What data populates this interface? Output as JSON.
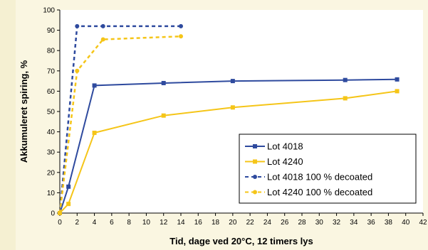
{
  "chart_data": {
    "type": "line",
    "xlabel": "Tid, dage ved 20°C, 12 timers lys",
    "ylabel": "Akkumuleret spiring, %",
    "xlim": [
      0,
      42
    ],
    "ylim": [
      0,
      100
    ],
    "xticks": [
      0,
      2,
      4,
      6,
      8,
      10,
      12,
      14,
      16,
      18,
      20,
      22,
      24,
      26,
      28,
      30,
      32,
      34,
      36,
      38,
      40,
      42
    ],
    "yticks": [
      0,
      10,
      20,
      30,
      40,
      50,
      60,
      70,
      80,
      90,
      100
    ],
    "grid": false,
    "legend_position": "bottom-right",
    "series": [
      {
        "name": "Lot 4018",
        "color": "#2e4a9e",
        "style": "solid",
        "marker": "square",
        "points": [
          [
            0,
            0
          ],
          [
            1,
            13
          ],
          [
            4,
            62.8
          ],
          [
            12,
            64
          ],
          [
            20,
            65
          ],
          [
            33,
            65.5
          ],
          [
            39,
            65.8
          ]
        ]
      },
      {
        "name": "Lot 4240",
        "color": "#f5c518",
        "style": "solid",
        "marker": "square",
        "points": [
          [
            0,
            0
          ],
          [
            1,
            4.5
          ],
          [
            4,
            39.5
          ],
          [
            12,
            48
          ],
          [
            20,
            52
          ],
          [
            33,
            56.5
          ],
          [
            39,
            60
          ]
        ]
      },
      {
        "name": "Lot 4018 100 % decoated",
        "color": "#2e4a9e",
        "style": "dashed",
        "marker": "circle",
        "points": [
          [
            0,
            0
          ],
          [
            2,
            92
          ],
          [
            5,
            92
          ],
          [
            14,
            92
          ]
        ]
      },
      {
        "name": "Lot 4240 100 % decoated",
        "color": "#f5c518",
        "style": "dashed",
        "marker": "circle",
        "points": [
          [
            0,
            0
          ],
          [
            2,
            70
          ],
          [
            5,
            85.5
          ],
          [
            14,
            87
          ]
        ]
      }
    ]
  }
}
